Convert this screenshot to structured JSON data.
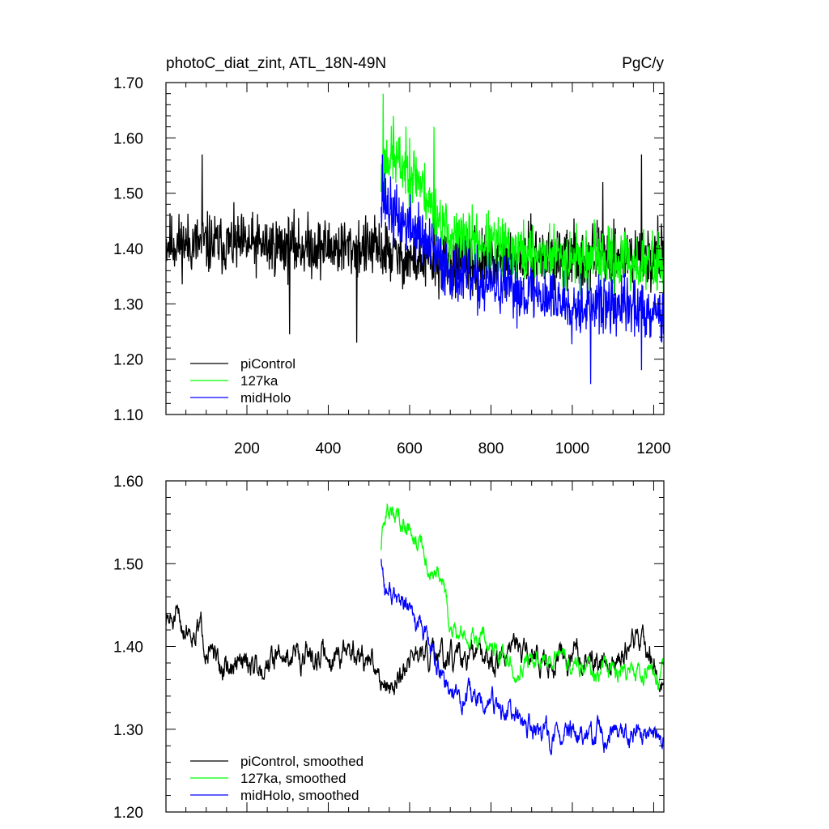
{
  "chart_data": [
    {
      "type": "line",
      "title": "photoC_diat_zint, ATL_18N-49N",
      "units": "PgC/y",
      "xlim": [
        1,
        1225
      ],
      "ylim": [
        1.1,
        1.7
      ],
      "yticks": [
        "1.10",
        "1.20",
        "1.30",
        "1.40",
        "1.50",
        "1.60",
        "1.70"
      ],
      "xticks": [
        "200",
        "400",
        "600",
        "800",
        "1000",
        "1200"
      ],
      "legend_position": "bottom-left",
      "series": [
        {
          "name": "piControl",
          "color": "#000000",
          "x_start": 1,
          "x_end": 1225,
          "mean": 1.4,
          "noise": 0.045,
          "seed": 11,
          "keypoints": [
            [
              1,
              1.41
            ],
            [
              520,
              1.4
            ],
            [
              600,
              1.38
            ],
            [
              700,
              1.37
            ],
            [
              900,
              1.385
            ],
            [
              1225,
              1.385
            ]
          ],
          "spikes": [
            [
              90,
              1.57
            ],
            [
              305,
              1.245
            ],
            [
              470,
              1.23
            ],
            [
              660,
              1.53
            ],
            [
              1075,
              1.52
            ],
            [
              1170,
              1.57
            ],
            [
              1210,
              1.46
            ]
          ]
        },
        {
          "name": "127ka",
          "color": "#00ff00",
          "x_start": 530,
          "x_end": 1225,
          "noise": 0.045,
          "seed": 23,
          "keypoints": [
            [
              530,
              1.52
            ],
            [
              545,
              1.57
            ],
            [
              620,
              1.53
            ],
            [
              650,
              1.48
            ],
            [
              700,
              1.42
            ],
            [
              780,
              1.41
            ],
            [
              900,
              1.39
            ],
            [
              1100,
              1.38
            ],
            [
              1225,
              1.37
            ]
          ],
          "spikes": [
            [
              535,
              1.68
            ],
            [
              560,
              1.64
            ],
            [
              660,
              1.62
            ],
            [
              600,
              1.6
            ]
          ]
        },
        {
          "name": "midHolo",
          "color": "#0000ff",
          "x_start": 530,
          "x_end": 1225,
          "noise": 0.045,
          "seed": 37,
          "keypoints": [
            [
              530,
              1.5
            ],
            [
              560,
              1.46
            ],
            [
              620,
              1.43
            ],
            [
              680,
              1.37
            ],
            [
              750,
              1.34
            ],
            [
              900,
              1.32
            ],
            [
              1000,
              1.3
            ],
            [
              1225,
              1.29
            ]
          ],
          "spikes": [
            [
              533,
              1.57
            ],
            [
              1045,
              1.155
            ],
            [
              1170,
              1.18
            ],
            [
              1220,
              1.23
            ]
          ]
        }
      ]
    },
    {
      "type": "line",
      "title": "",
      "ylim": [
        1.2,
        1.6
      ],
      "yticks": [
        "1.20",
        "1.30",
        "1.40",
        "1.50",
        "1.60"
      ],
      "xlim": [
        1,
        1225
      ],
      "legend_position": "bottom-left",
      "series": [
        {
          "name": "piControl, smoothed",
          "color": "#000000",
          "x_start": 1,
          "x_end": 1225,
          "noise": 0.016,
          "seed": 51,
          "keypoints": [
            [
              1,
              1.43
            ],
            [
              90,
              1.42
            ],
            [
              130,
              1.37
            ],
            [
              300,
              1.39
            ],
            [
              470,
              1.39
            ],
            [
              520,
              1.37
            ],
            [
              560,
              1.35
            ],
            [
              600,
              1.39
            ],
            [
              700,
              1.38
            ],
            [
              900,
              1.39
            ],
            [
              1100,
              1.38
            ],
            [
              1170,
              1.41
            ],
            [
              1225,
              1.35
            ]
          ]
        },
        {
          "name": "127ka, smoothed",
          "color": "#00ff00",
          "x_start": 530,
          "x_end": 1225,
          "noise": 0.012,
          "seed": 63,
          "keypoints": [
            [
              530,
              1.52
            ],
            [
              545,
              1.565
            ],
            [
              600,
              1.55
            ],
            [
              630,
              1.52
            ],
            [
              650,
              1.49
            ],
            [
              680,
              1.48
            ],
            [
              700,
              1.42
            ],
            [
              760,
              1.41
            ],
            [
              800,
              1.41
            ],
            [
              850,
              1.38
            ],
            [
              950,
              1.39
            ],
            [
              1100,
              1.37
            ],
            [
              1225,
              1.37
            ]
          ]
        },
        {
          "name": "midHolo, smoothed",
          "color": "#0000ff",
          "x_start": 530,
          "x_end": 1225,
          "noise": 0.014,
          "seed": 77,
          "keypoints": [
            [
              530,
              1.51
            ],
            [
              540,
              1.47
            ],
            [
              600,
              1.44
            ],
            [
              640,
              1.41
            ],
            [
              680,
              1.36
            ],
            [
              720,
              1.34
            ],
            [
              800,
              1.33
            ],
            [
              900,
              1.3
            ],
            [
              950,
              1.29
            ],
            [
              1000,
              1.29
            ],
            [
              1100,
              1.29
            ],
            [
              1225,
              1.29
            ]
          ]
        }
      ]
    }
  ]
}
